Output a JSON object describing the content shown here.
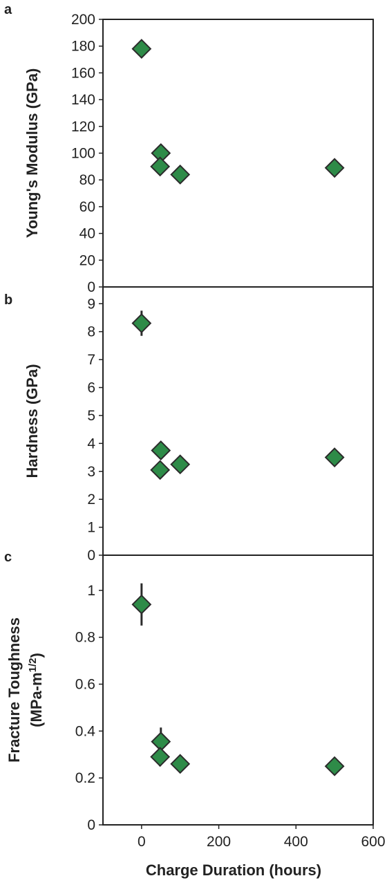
{
  "colors": {
    "marker_fill": "#2e8b48",
    "marker_stroke": "#2b2b2b",
    "axis": "#222222",
    "error_bar": "#2b2b2b"
  },
  "chart_data": [
    {
      "type": "scatter",
      "panel": "a",
      "ylabel": "Young's Modulus (GPa)",
      "ylim": [
        0,
        200
      ],
      "yticks": [
        0,
        20,
        40,
        60,
        80,
        100,
        120,
        140,
        160,
        180,
        200
      ],
      "xlim": [
        -100,
        600
      ],
      "points": [
        {
          "x": 0,
          "y": 178
        },
        {
          "x": 50,
          "y": 100
        },
        {
          "x": 48,
          "y": 90
        },
        {
          "x": 100,
          "y": 84
        },
        {
          "x": 500,
          "y": 89
        }
      ],
      "marker": "diamond",
      "grid": false
    },
    {
      "type": "scatter",
      "panel": "b",
      "ylabel": "Hardness (GPa)",
      "ylim": [
        0,
        9.6
      ],
      "yticks": [
        0,
        1,
        2,
        3,
        4,
        5,
        6,
        7,
        8,
        9
      ],
      "xlim": [
        -100,
        600
      ],
      "points": [
        {
          "x": 0,
          "y": 8.3,
          "err": 0.45
        },
        {
          "x": 50,
          "y": 3.75
        },
        {
          "x": 48,
          "y": 3.05
        },
        {
          "x": 100,
          "y": 3.25
        },
        {
          "x": 500,
          "y": 3.5
        }
      ],
      "marker": "diamond",
      "grid": false
    },
    {
      "type": "scatter",
      "panel": "c",
      "ylabel_line1": "Fracture Toughness",
      "ylabel_line2_base": "(MPa-m",
      "ylabel_line2_sup": "1/2",
      "ylabel_line2_end": ")",
      "ylim": [
        0,
        1.15
      ],
      "yticks": [
        0,
        0.2,
        0.4,
        0.6,
        0.8,
        1
      ],
      "ytick_labels": [
        "0",
        "0.2",
        "0.4",
        "0.6",
        "0.8",
        "1"
      ],
      "xlim": [
        -100,
        600
      ],
      "xticks": [
        0,
        200,
        400,
        600
      ],
      "xlabel": "Charge Duration (hours)",
      "points": [
        {
          "x": 0,
          "y": 0.94,
          "err": 0.09
        },
        {
          "x": 50,
          "y": 0.355,
          "err": 0.06
        },
        {
          "x": 48,
          "y": 0.29,
          "err": 0.04
        },
        {
          "x": 100,
          "y": 0.26
        },
        {
          "x": 500,
          "y": 0.25
        }
      ],
      "marker": "diamond",
      "grid": false
    }
  ]
}
